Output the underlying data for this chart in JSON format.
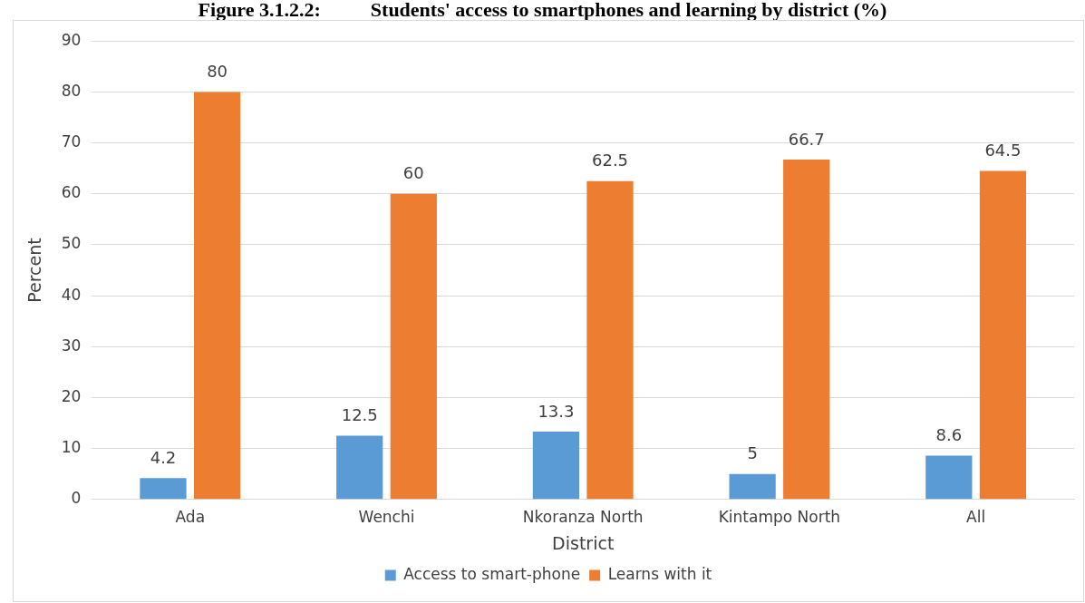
{
  "chart_data": {
    "type": "bar",
    "title": "Figure 3.1.2.2:          Students' access to smartphones and learning by district (%)",
    "xlabel": "District",
    "ylabel": "Percent",
    "categories": [
      "Ada",
      "Wenchi",
      "Nkoranza North",
      "Kintampo North",
      "All"
    ],
    "series": [
      {
        "name": "Access to smart-phone",
        "color": "#5b9bd5",
        "values": [
          4.2,
          12.5,
          13.3,
          5,
          8.6
        ]
      },
      {
        "name": "Learns with it",
        "color": "#ed7d31",
        "values": [
          80,
          60,
          62.5,
          66.7,
          64.5
        ]
      }
    ],
    "ylim": [
      0,
      90
    ],
    "yticks": [
      0,
      10,
      20,
      30,
      40,
      50,
      60,
      70,
      80,
      90
    ],
    "grid": "y",
    "legend": "bottom",
    "data_labels": true
  }
}
